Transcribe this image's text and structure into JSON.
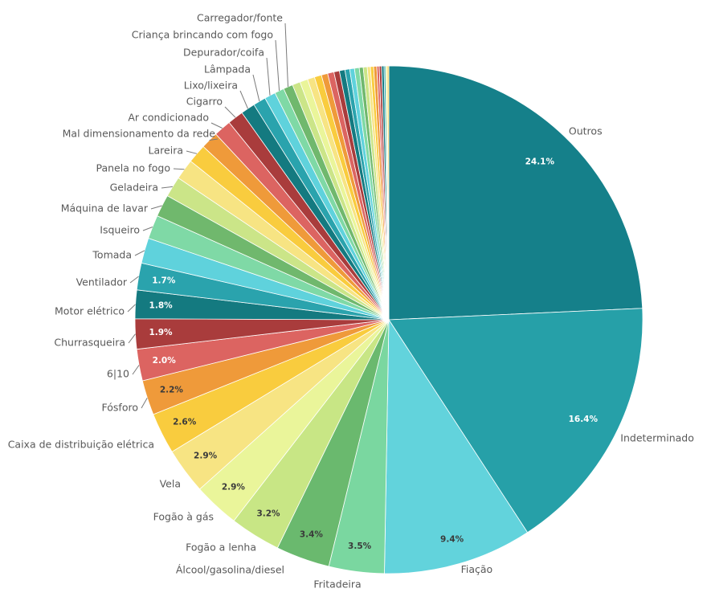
{
  "chart_data": {
    "type": "pie",
    "title": "",
    "start": "12 o'clock, clockwise",
    "slices": [
      {
        "label": "Outros",
        "value": 24.1,
        "value_label": "24.1%",
        "color": "#15808a",
        "value_label_color": "#ffffff"
      },
      {
        "label": "Indeterminado",
        "value": 16.4,
        "value_label": "16.4%",
        "color": "#26a0a8",
        "value_label_color": "#ffffff"
      },
      {
        "label": "Fiação",
        "value": 9.4,
        "value_label": "9.4%",
        "color": "#62d3dc",
        "value_label_color": "#3a3a3a"
      },
      {
        "label": "Fritadeira",
        "value": 3.5,
        "value_label": "3.5%",
        "color": "#7ad7a0",
        "value_label_color": "#3a3a3a"
      },
      {
        "label": "Álcool/gasolina/diesel",
        "value": 3.4,
        "value_label": "3.4%",
        "color": "#6ab96e",
        "value_label_color": "#3a3a3a"
      },
      {
        "label": "Fogão a lenha",
        "value": 3.2,
        "value_label": "3.2%",
        "color": "#c8e685",
        "value_label_color": "#3a3a3a"
      },
      {
        "label": "Fogão à gás",
        "value": 2.9,
        "value_label": "2.9%",
        "color": "#eaf59a",
        "value_label_color": "#3a3a3a"
      },
      {
        "label": "Vela",
        "value": 2.9,
        "value_label": "2.9%",
        "color": "#f7e483",
        "value_label_color": "#3a3a3a"
      },
      {
        "label": "Caixa de distribuição elétrica",
        "value": 2.6,
        "value_label": "2.6%",
        "color": "#f9cc3e",
        "value_label_color": "#3a3a3a"
      },
      {
        "label": "Fósforo",
        "value": 2.2,
        "value_label": "2.2%",
        "color": "#ef9a3a",
        "value_label_color": "#3a3a3a"
      },
      {
        "label": "6|10",
        "value": 2.0,
        "value_label": "2.0%",
        "color": "#dc6461",
        "value_label_color": "#ffffff"
      },
      {
        "label": "Churrasqueira",
        "value": 1.9,
        "value_label": "1.9%",
        "color": "#a93c3c",
        "value_label_color": "#ffffff"
      },
      {
        "label": "Motor elétrico",
        "value": 1.8,
        "value_label": "1.8%",
        "color": "#147a80",
        "value_label_color": "#ffffff"
      },
      {
        "label": "Ventilador",
        "value": 1.7,
        "value_label": "1.7%",
        "color": "#2aa3ad",
        "value_label_color": "#ffffff"
      },
      {
        "label": "Tomada",
        "value": 1.6,
        "value_label": "",
        "color": "#5fd2dc"
      },
      {
        "label": "Isqueiro",
        "value": 1.5,
        "value_label": "",
        "color": "#7fd9a6"
      },
      {
        "label": "Máquina de lavar",
        "value": 1.4,
        "value_label": "",
        "color": "#70b86d"
      },
      {
        "label": "Geladeira",
        "value": 1.3,
        "value_label": "",
        "color": "#cbe588"
      },
      {
        "label": "Panela no fogo",
        "value": 1.3,
        "value_label": "",
        "color": "#f7e483"
      },
      {
        "label": "Lareira",
        "value": 1.2,
        "value_label": "",
        "color": "#f9cc3e"
      },
      {
        "label": "Mal dimensionamento da rede",
        "value": 1.1,
        "value_label": "",
        "color": "#ef9a3a"
      },
      {
        "label": "Ar condicionado",
        "value": 1.1,
        "value_label": "",
        "color": "#dc6461"
      },
      {
        "label": "Cigarro",
        "value": 1.0,
        "value_label": "",
        "color": "#a93c3c"
      },
      {
        "label": "Lixo/lixeira",
        "value": 0.9,
        "value_label": "",
        "color": "#147a80"
      },
      {
        "label": "Lâmpada",
        "value": 0.8,
        "value_label": "",
        "color": "#2aa3ad"
      },
      {
        "label": "Depurador/coifa",
        "value": 0.7,
        "value_label": "",
        "color": "#5fd2dc"
      },
      {
        "label": "Criança brincando com fogo",
        "value": 0.6,
        "value_label": "",
        "color": "#7fd9a6"
      },
      {
        "label": "Carregador/fonte",
        "value": 0.6,
        "value_label": "",
        "color": "#70b86d"
      },
      {
        "label": "",
        "value": 0.5,
        "value_label": "",
        "color": "#cbe588"
      },
      {
        "label": "",
        "value": 0.5,
        "value_label": "",
        "color": "#eaf59a"
      },
      {
        "label": "",
        "value": 0.45,
        "value_label": "",
        "color": "#f7e483"
      },
      {
        "label": "",
        "value": 0.45,
        "value_label": "",
        "color": "#f9cc3e"
      },
      {
        "label": "",
        "value": 0.4,
        "value_label": "",
        "color": "#ef9a3a"
      },
      {
        "label": "",
        "value": 0.4,
        "value_label": "",
        "color": "#dc6461"
      },
      {
        "label": "",
        "value": 0.35,
        "value_label": "",
        "color": "#a93c3c"
      },
      {
        "label": "",
        "value": 0.35,
        "value_label": "",
        "color": "#147a80"
      },
      {
        "label": "",
        "value": 0.3,
        "value_label": "",
        "color": "#2aa3ad"
      },
      {
        "label": "",
        "value": 0.3,
        "value_label": "",
        "color": "#5fd2dc"
      },
      {
        "label": "",
        "value": 0.3,
        "value_label": "",
        "color": "#7fd9a6"
      },
      {
        "label": "",
        "value": 0.25,
        "value_label": "",
        "color": "#70b86d"
      },
      {
        "label": "",
        "value": 0.25,
        "value_label": "",
        "color": "#cbe588"
      },
      {
        "label": "",
        "value": 0.2,
        "value_label": "",
        "color": "#f7e483"
      },
      {
        "label": "",
        "value": 0.2,
        "value_label": "",
        "color": "#f9cc3e"
      },
      {
        "label": "",
        "value": 0.2,
        "value_label": "",
        "color": "#ef9a3a"
      },
      {
        "label": "",
        "value": 0.15,
        "value_label": "",
        "color": "#dc6461"
      },
      {
        "label": "",
        "value": 0.15,
        "value_label": "",
        "color": "#a93c3c"
      },
      {
        "label": "",
        "value": 0.15,
        "value_label": "",
        "color": "#147a80"
      },
      {
        "label": "",
        "value": 0.1,
        "value_label": "",
        "color": "#2aa3ad"
      },
      {
        "label": "",
        "value": 0.1,
        "value_label": "",
        "color": "#eaf59a"
      },
      {
        "label": "",
        "value": 0.1,
        "value_label": "",
        "color": "#f9cc3e"
      }
    ]
  }
}
